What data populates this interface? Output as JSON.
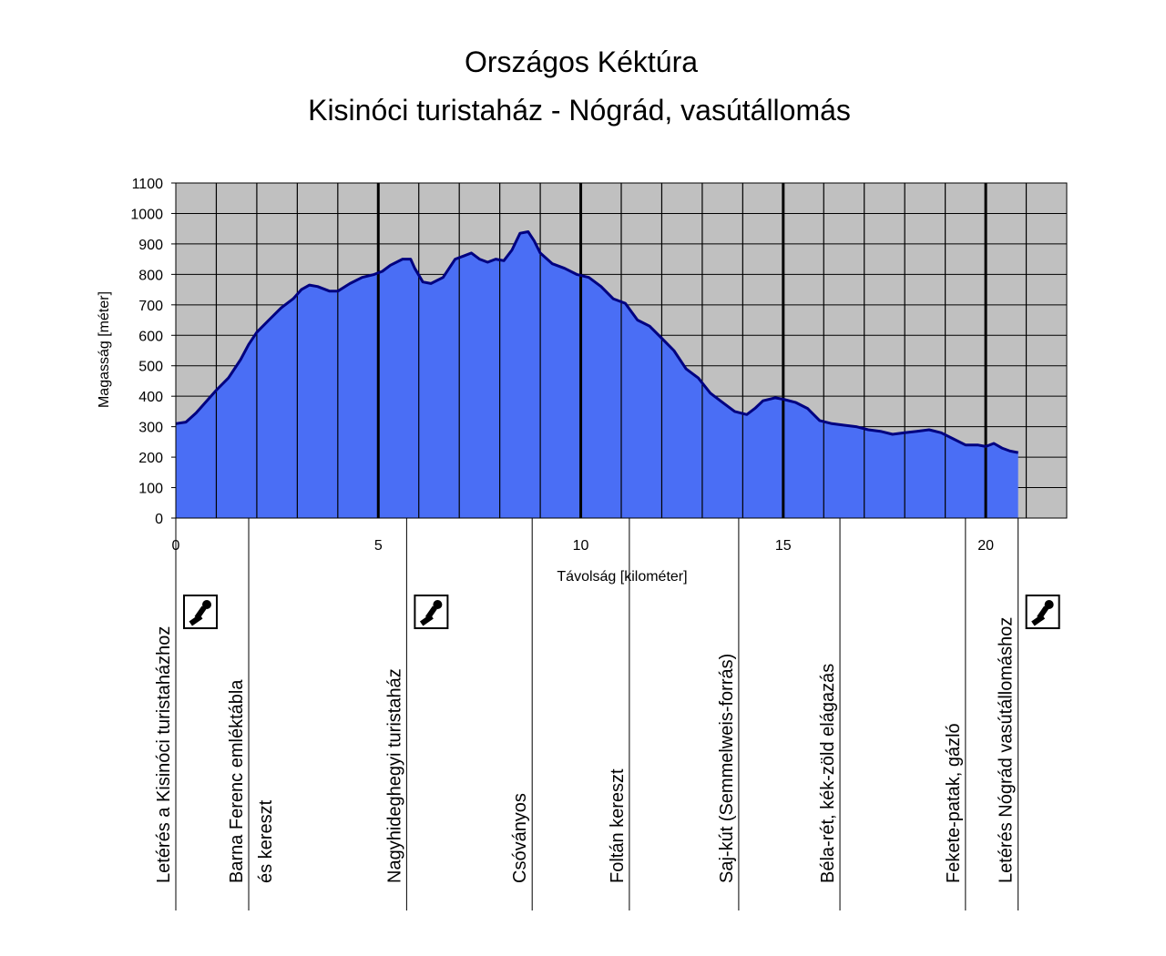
{
  "chart_data": {
    "type": "area",
    "title": "Országos Kéktúra",
    "subtitle": "Kisinóci turistaház - Nógrád, vasútállomás",
    "xlabel": "Távolság [kilométer]",
    "ylabel": "Magasság [méter]",
    "xlim": [
      0,
      22
    ],
    "ylim": [
      0,
      1100
    ],
    "x_ticks": [
      0,
      5,
      10,
      15,
      20
    ],
    "y_ticks": [
      0,
      100,
      200,
      300,
      400,
      500,
      600,
      700,
      800,
      900,
      1000,
      1100
    ],
    "grid": true,
    "plot_background": "#c0c0c0",
    "fill_color": "#4a6ef5",
    "line_color": "#000080",
    "series": [
      {
        "x": [
          0,
          0.25,
          0.5,
          0.8,
          1.0,
          1.3,
          1.6,
          1.8,
          2.0,
          2.3,
          2.6,
          2.9,
          3.1,
          3.3,
          3.5,
          3.8,
          4.0,
          4.3,
          4.6,
          4.9,
          5.1,
          5.3,
          5.6,
          5.8,
          5.9,
          6.1,
          6.3,
          6.6,
          6.9,
          7.1,
          7.3,
          7.5,
          7.7,
          7.9,
          8.1,
          8.3,
          8.5,
          8.7,
          8.85,
          9.0,
          9.3,
          9.6,
          9.9,
          10.2,
          10.5,
          10.8,
          11.1,
          11.4,
          11.7,
          12.0,
          12.3,
          12.6,
          12.9,
          13.2,
          13.5,
          13.8,
          14.1,
          14.3,
          14.5,
          14.8,
          15.0,
          15.3,
          15.6,
          15.9,
          16.2,
          16.5,
          16.8,
          17.1,
          17.4,
          17.7,
          18.0,
          18.3,
          18.6,
          18.9,
          19.2,
          19.5,
          19.8,
          20.0,
          20.2,
          20.4,
          20.6,
          20.8
        ],
        "y": [
          310,
          315,
          345,
          390,
          420,
          460,
          520,
          570,
          610,
          650,
          690,
          720,
          750,
          765,
          760,
          745,
          745,
          770,
          790,
          800,
          810,
          830,
          850,
          850,
          820,
          775,
          770,
          790,
          850,
          860,
          870,
          850,
          840,
          850,
          845,
          880,
          935,
          940,
          910,
          870,
          835,
          820,
          800,
          790,
          760,
          720,
          705,
          650,
          630,
          590,
          550,
          490,
          460,
          410,
          380,
          350,
          340,
          360,
          385,
          395,
          390,
          380,
          360,
          320,
          310,
          305,
          300,
          290,
          285,
          275,
          280,
          285,
          290,
          280,
          260,
          240,
          240,
          235,
          245,
          230,
          220,
          215
        ]
      }
    ],
    "vertical_markers": [
      1,
      2,
      3,
      4,
      5,
      6,
      7,
      8,
      9,
      10,
      11,
      12,
      13,
      14,
      15,
      16,
      17,
      18,
      19,
      20,
      21
    ],
    "stations": [
      {
        "label": "Letérés a Kisinóci turistaházhoz",
        "km": 0,
        "stamp": true
      },
      {
        "label": "Barna Ferenc emléktábla",
        "label2": "és kereszt",
        "km": 1.8
      },
      {
        "label": "Nagyhideghegyi turistaház",
        "km": 5.7,
        "stamp": true
      },
      {
        "label": "Csóványos",
        "km": 8.8
      },
      {
        "label": "Foltán kereszt",
        "km": 11.2
      },
      {
        "label": "Saj-kút (Semmelweis-forrás)",
        "km": 13.9
      },
      {
        "label": "Béla-rét, kék-zöld elágazás",
        "km": 16.4
      },
      {
        "label": "Fekete-patak, gázló",
        "km": 19.5
      },
      {
        "label": "Letérés Nógrád vasútállomáshoz",
        "km": 20.8,
        "stamp": true
      }
    ]
  }
}
